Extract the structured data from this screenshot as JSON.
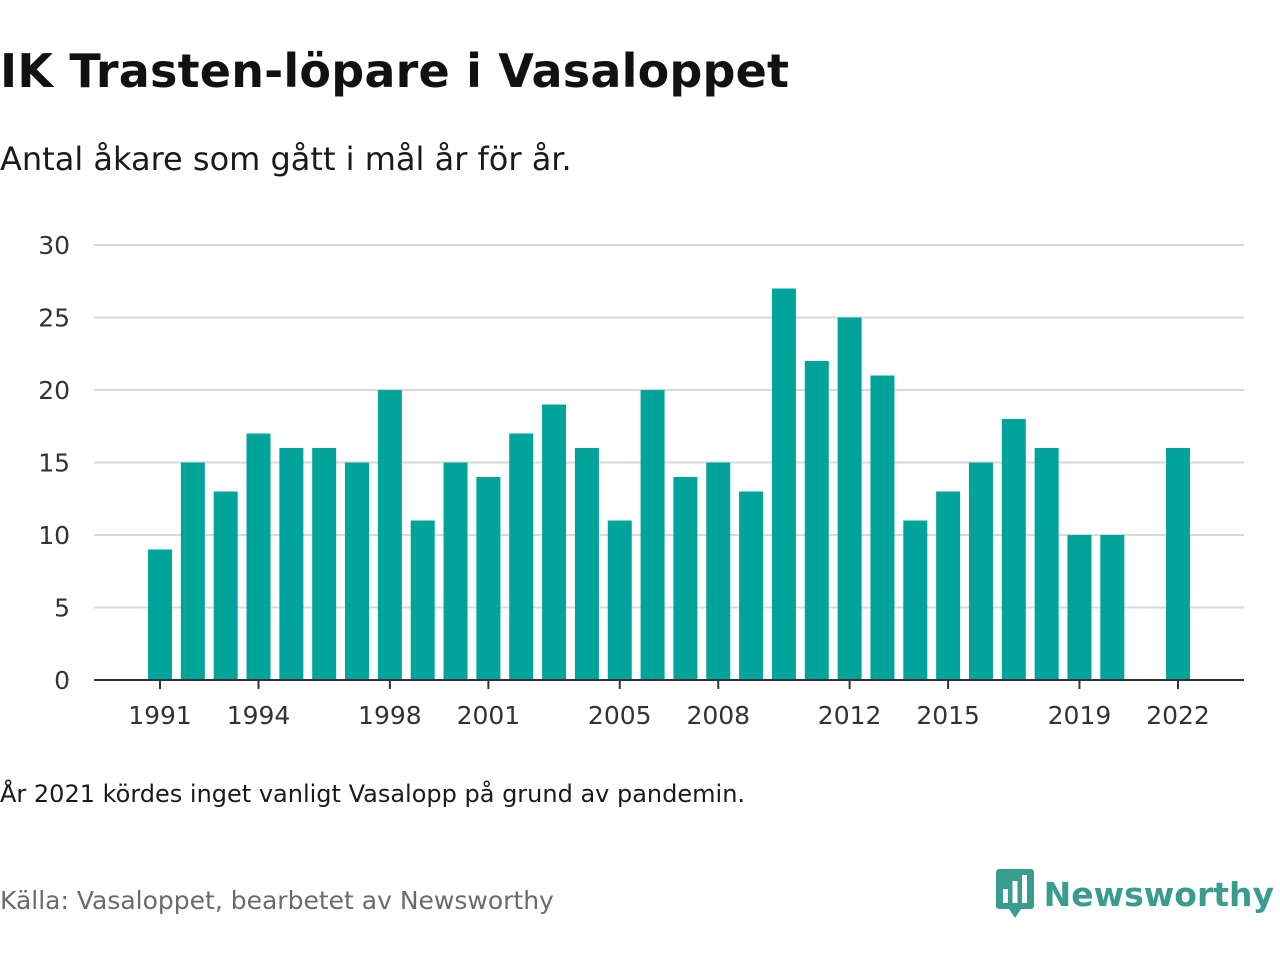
{
  "header": {
    "title": "IK Trasten-löpare i Vasaloppet",
    "subtitle": "Antal åkare som gått i mål år för år."
  },
  "footer": {
    "note": "År 2021 kördes inget vanligt Vasalopp på grund av pandemin.",
    "source": "Källa: Vasaloppet, bearbetet av Newsworthy",
    "brand": "Newsworthy",
    "brand_icon": "newsworthy-logo-icon",
    "brand_color": "#3a9c8e"
  },
  "colors": {
    "bar": "#00a49a",
    "grid": "#d9d9d9",
    "axis": "#333333",
    "tick_text": "#333333"
  },
  "chart_data": {
    "type": "bar",
    "title": "",
    "xlabel": "",
    "ylabel": "",
    "ylim": [
      0,
      30
    ],
    "yticks": [
      0,
      5,
      10,
      15,
      20,
      25,
      30
    ],
    "grid": true,
    "legend": "none",
    "categories": [
      1991,
      1992,
      1993,
      1994,
      1995,
      1996,
      1997,
      1998,
      1999,
      2000,
      2001,
      2002,
      2003,
      2004,
      2005,
      2006,
      2007,
      2008,
      2009,
      2010,
      2011,
      2012,
      2013,
      2014,
      2015,
      2016,
      2017,
      2018,
      2019,
      2020,
      2021,
      2022
    ],
    "values": [
      9,
      15,
      13,
      17,
      16,
      16,
      15,
      20,
      11,
      15,
      14,
      17,
      19,
      16,
      11,
      20,
      14,
      15,
      13,
      27,
      22,
      25,
      21,
      11,
      13,
      15,
      18,
      16,
      10,
      10,
      null,
      16
    ],
    "xtick_labels": [
      "1991",
      "1994",
      "1998",
      "2001",
      "2005",
      "2008",
      "2012",
      "2015",
      "2019",
      "2022"
    ]
  }
}
